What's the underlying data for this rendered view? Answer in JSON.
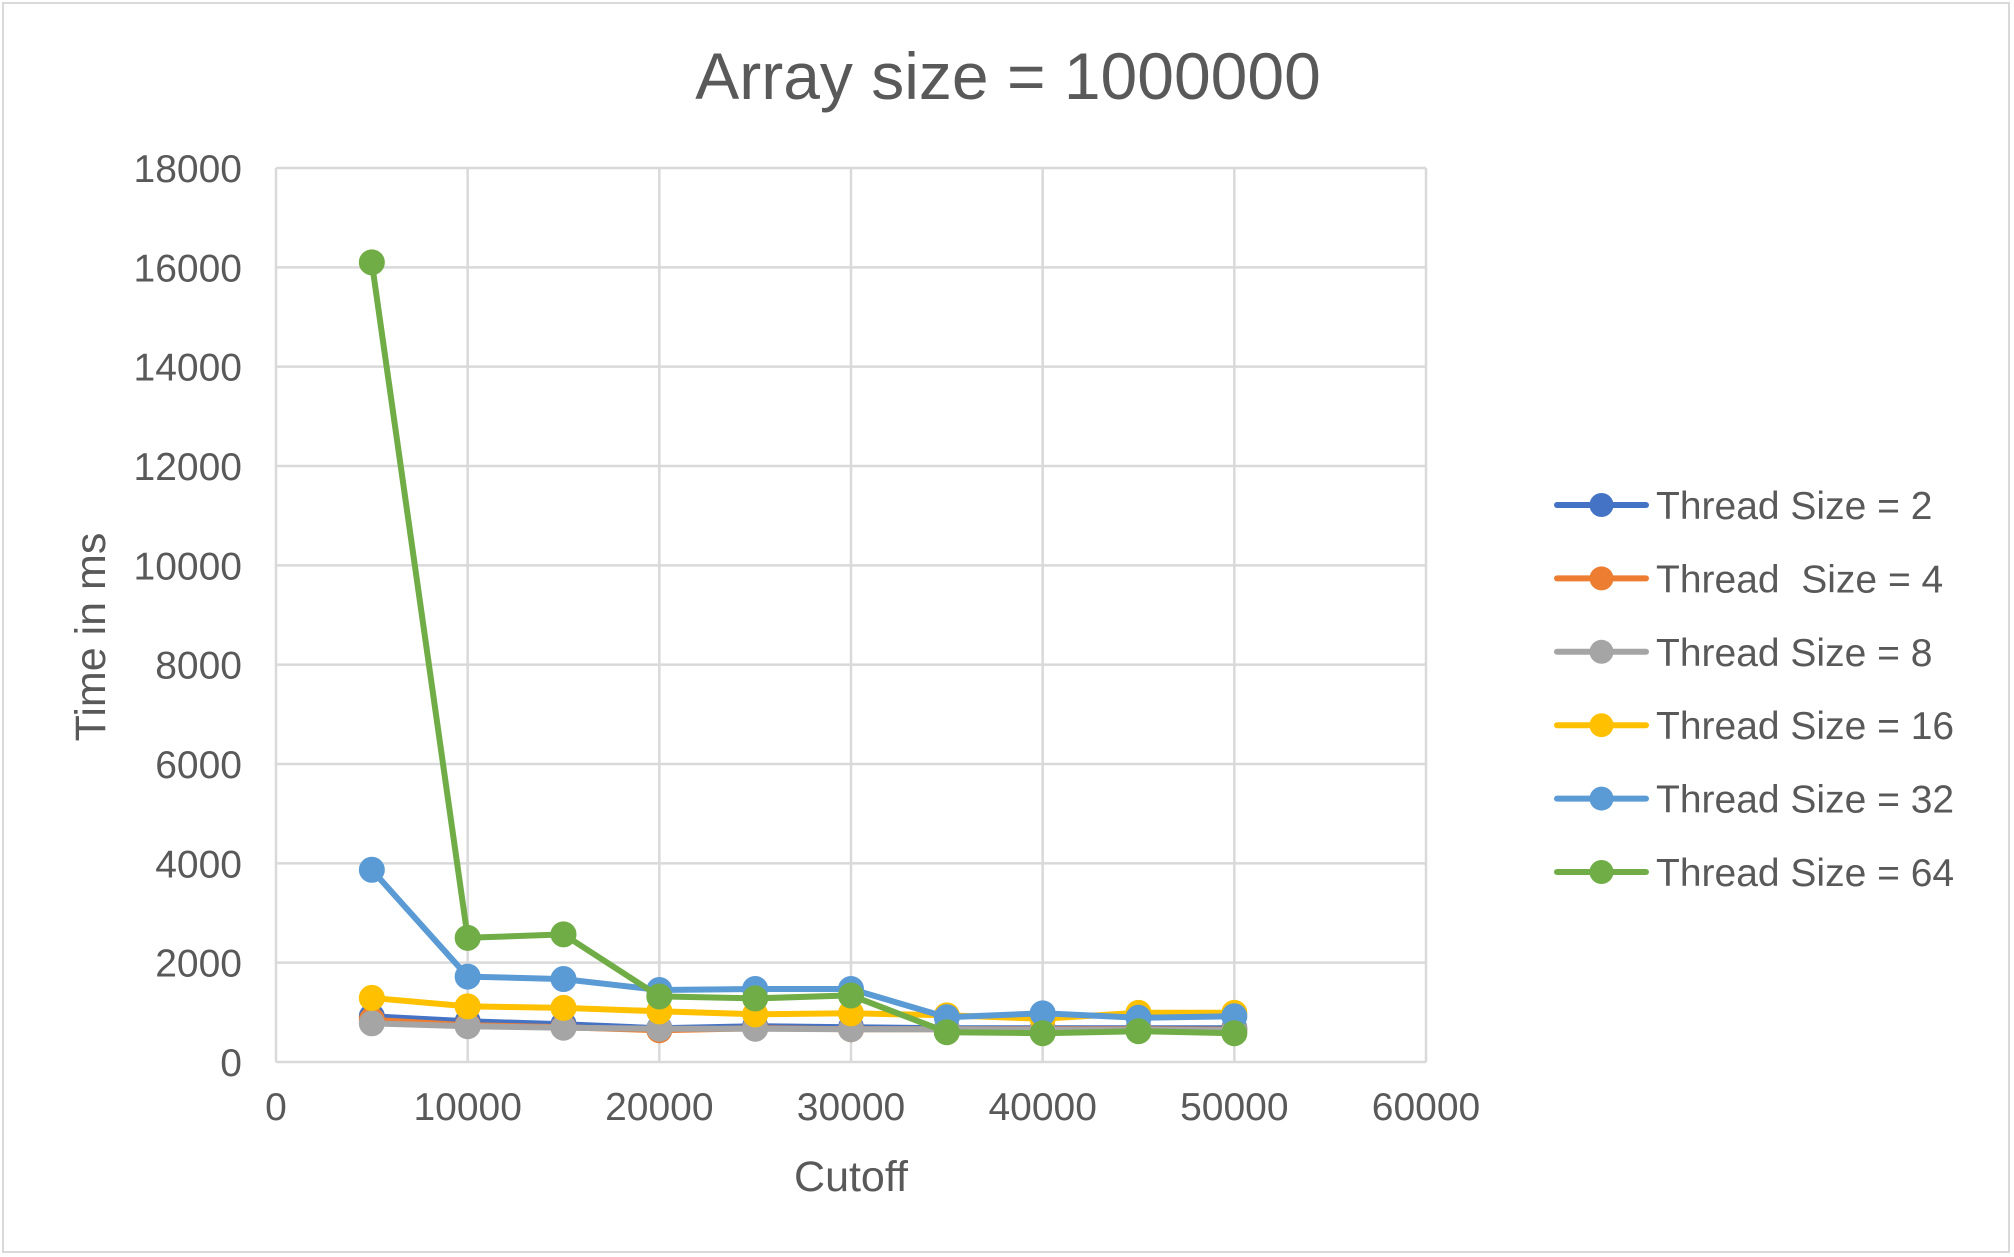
{
  "chart_data": {
    "type": "line",
    "title": "Array size = 1000000",
    "xlabel": "Cutoff",
    "ylabel": "Time in ms",
    "xlim": [
      0,
      60000
    ],
    "ylim": [
      0,
      18000
    ],
    "x_ticks": [
      0,
      10000,
      20000,
      30000,
      40000,
      50000,
      60000
    ],
    "y_ticks": [
      0,
      2000,
      4000,
      6000,
      8000,
      10000,
      12000,
      14000,
      16000,
      18000
    ],
    "grid": true,
    "legend_position": "right",
    "markers": "circle",
    "x": [
      5000,
      10000,
      15000,
      20000,
      25000,
      30000,
      35000,
      40000,
      45000,
      50000
    ],
    "series": [
      {
        "name": "Thread Size = 2",
        "color": "#4472c4",
        "values": [
          920,
          820,
          760,
          680,
          720,
          700,
          680,
          680,
          680,
          680
        ]
      },
      {
        "name": "Thread  Size = 4",
        "color": "#ed7d31",
        "values": [
          850,
          740,
          700,
          640,
          680,
          660,
          660,
          660,
          660,
          650
        ]
      },
      {
        "name": "Thread Size = 8",
        "color": "#a5a5a5",
        "values": [
          780,
          720,
          690,
          670,
          670,
          660,
          660,
          650,
          650,
          640
        ]
      },
      {
        "name": "Thread Size = 16",
        "color": "#ffc000",
        "values": [
          1290,
          1120,
          1090,
          1020,
          960,
          980,
          940,
          870,
          990,
          990
        ]
      },
      {
        "name": "Thread Size = 32",
        "color": "#5b9bd5",
        "values": [
          3870,
          1720,
          1670,
          1450,
          1470,
          1470,
          900,
          980,
          890,
          920
        ]
      },
      {
        "name": "Thread Size = 64",
        "color": "#70ad47",
        "values": [
          16100,
          2500,
          2570,
          1320,
          1280,
          1340,
          600,
          580,
          620,
          580
        ]
      }
    ]
  }
}
